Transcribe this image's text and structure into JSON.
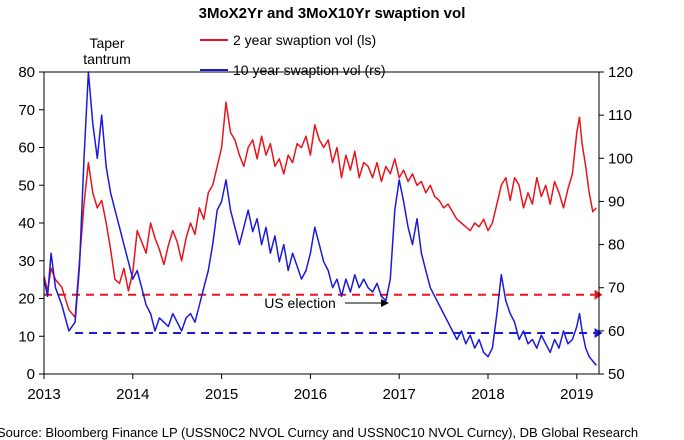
{
  "chart_data": {
    "type": "line",
    "title": "3MoX2Yr and 3MoX10Yr swaption vol",
    "x_axis": {
      "range": [
        2013.0,
        2019.25
      ],
      "ticks": [
        2013,
        2014,
        2015,
        2016,
        2017,
        2018,
        2019
      ]
    },
    "y_left": {
      "range": [
        0,
        80
      ],
      "ticks": [
        0,
        10,
        20,
        30,
        40,
        50,
        60,
        70,
        80
      ]
    },
    "y_right": {
      "range": [
        50,
        120
      ],
      "ticks": [
        50,
        60,
        70,
        80,
        90,
        100,
        110,
        120
      ]
    },
    "series": [
      {
        "name": "2 year swaption vol (ls)",
        "axis": "left",
        "color": "#e8141c",
        "points": [
          [
            2013.0,
            26
          ],
          [
            2013.04,
            22
          ],
          [
            2013.08,
            28
          ],
          [
            2013.13,
            25
          ],
          [
            2013.2,
            23
          ],
          [
            2013.28,
            17
          ],
          [
            2013.35,
            15
          ],
          [
            2013.4,
            30
          ],
          [
            2013.45,
            45
          ],
          [
            2013.5,
            56
          ],
          [
            2013.55,
            48
          ],
          [
            2013.6,
            44
          ],
          [
            2013.65,
            46
          ],
          [
            2013.7,
            40
          ],
          [
            2013.75,
            33
          ],
          [
            2013.8,
            25
          ],
          [
            2013.85,
            24
          ],
          [
            2013.9,
            28
          ],
          [
            2013.95,
            22
          ],
          [
            2014.0,
            27
          ],
          [
            2014.05,
            38
          ],
          [
            2014.1,
            35
          ],
          [
            2014.15,
            32
          ],
          [
            2014.2,
            40
          ],
          [
            2014.25,
            36
          ],
          [
            2014.3,
            33
          ],
          [
            2014.35,
            29
          ],
          [
            2014.4,
            34
          ],
          [
            2014.45,
            38
          ],
          [
            2014.5,
            35
          ],
          [
            2014.55,
            30
          ],
          [
            2014.6,
            36
          ],
          [
            2014.65,
            40
          ],
          [
            2014.7,
            37
          ],
          [
            2014.75,
            44
          ],
          [
            2014.8,
            41
          ],
          [
            2014.85,
            48
          ],
          [
            2014.9,
            50
          ],
          [
            2014.95,
            55
          ],
          [
            2015.0,
            60
          ],
          [
            2015.05,
            72
          ],
          [
            2015.1,
            64
          ],
          [
            2015.15,
            62
          ],
          [
            2015.2,
            58
          ],
          [
            2015.25,
            55
          ],
          [
            2015.3,
            60
          ],
          [
            2015.35,
            62
          ],
          [
            2015.4,
            57
          ],
          [
            2015.45,
            63
          ],
          [
            2015.5,
            58
          ],
          [
            2015.55,
            61
          ],
          [
            2015.6,
            55
          ],
          [
            2015.65,
            57
          ],
          [
            2015.7,
            53
          ],
          [
            2015.75,
            58
          ],
          [
            2015.8,
            56
          ],
          [
            2015.85,
            61
          ],
          [
            2015.9,
            60
          ],
          [
            2015.95,
            63
          ],
          [
            2016.0,
            58
          ],
          [
            2016.05,
            66
          ],
          [
            2016.1,
            62
          ],
          [
            2016.15,
            60
          ],
          [
            2016.2,
            62
          ],
          [
            2016.25,
            56
          ],
          [
            2016.3,
            60
          ],
          [
            2016.35,
            52
          ],
          [
            2016.4,
            58
          ],
          [
            2016.45,
            54
          ],
          [
            2016.5,
            59
          ],
          [
            2016.55,
            52
          ],
          [
            2016.6,
            56
          ],
          [
            2016.65,
            55
          ],
          [
            2016.7,
            52
          ],
          [
            2016.75,
            56
          ],
          [
            2016.8,
            51
          ],
          [
            2016.85,
            55
          ],
          [
            2016.9,
            53
          ],
          [
            2016.95,
            57
          ],
          [
            2017.0,
            52
          ],
          [
            2017.05,
            54
          ],
          [
            2017.1,
            51
          ],
          [
            2017.15,
            53
          ],
          [
            2017.2,
            50
          ],
          [
            2017.25,
            51
          ],
          [
            2017.3,
            48
          ],
          [
            2017.35,
            50
          ],
          [
            2017.4,
            47
          ],
          [
            2017.45,
            46
          ],
          [
            2017.5,
            44
          ],
          [
            2017.55,
            45
          ],
          [
            2017.6,
            43
          ],
          [
            2017.65,
            41
          ],
          [
            2017.7,
            40
          ],
          [
            2017.75,
            39
          ],
          [
            2017.8,
            38
          ],
          [
            2017.85,
            40
          ],
          [
            2017.9,
            39
          ],
          [
            2017.95,
            41
          ],
          [
            2018.0,
            38
          ],
          [
            2018.05,
            40
          ],
          [
            2018.1,
            45
          ],
          [
            2018.15,
            50
          ],
          [
            2018.2,
            52
          ],
          [
            2018.25,
            46
          ],
          [
            2018.3,
            52
          ],
          [
            2018.35,
            50
          ],
          [
            2018.4,
            44
          ],
          [
            2018.45,
            48
          ],
          [
            2018.5,
            45
          ],
          [
            2018.55,
            52
          ],
          [
            2018.6,
            47
          ],
          [
            2018.65,
            50
          ],
          [
            2018.7,
            45
          ],
          [
            2018.75,
            51
          ],
          [
            2018.8,
            48
          ],
          [
            2018.85,
            44
          ],
          [
            2018.9,
            49
          ],
          [
            2018.95,
            53
          ],
          [
            2019.0,
            64
          ],
          [
            2019.03,
            68
          ],
          [
            2019.06,
            61
          ],
          [
            2019.1,
            55
          ],
          [
            2019.14,
            48
          ],
          [
            2019.18,
            43
          ],
          [
            2019.22,
            44
          ]
        ]
      },
      {
        "name": "10 year swaption vol (rs)",
        "axis": "right",
        "color": "#1a1adc",
        "points": [
          [
            2013.0,
            72
          ],
          [
            2013.04,
            68
          ],
          [
            2013.08,
            78
          ],
          [
            2013.13,
            70
          ],
          [
            2013.2,
            66
          ],
          [
            2013.28,
            60
          ],
          [
            2013.35,
            62
          ],
          [
            2013.4,
            75
          ],
          [
            2013.45,
            100
          ],
          [
            2013.5,
            120
          ],
          [
            2013.55,
            108
          ],
          [
            2013.6,
            100
          ],
          [
            2013.65,
            110
          ],
          [
            2013.7,
            98
          ],
          [
            2013.75,
            92
          ],
          [
            2013.8,
            88
          ],
          [
            2013.85,
            84
          ],
          [
            2013.9,
            80
          ],
          [
            2013.95,
            76
          ],
          [
            2014.0,
            72
          ],
          [
            2014.05,
            74
          ],
          [
            2014.1,
            70
          ],
          [
            2014.15,
            66
          ],
          [
            2014.2,
            64
          ],
          [
            2014.25,
            60
          ],
          [
            2014.3,
            63
          ],
          [
            2014.35,
            62
          ],
          [
            2014.4,
            61
          ],
          [
            2014.45,
            64
          ],
          [
            2014.5,
            62
          ],
          [
            2014.55,
            60
          ],
          [
            2014.6,
            63
          ],
          [
            2014.65,
            64
          ],
          [
            2014.7,
            62
          ],
          [
            2014.75,
            66
          ],
          [
            2014.8,
            70
          ],
          [
            2014.85,
            74
          ],
          [
            2014.9,
            80
          ],
          [
            2014.95,
            88
          ],
          [
            2015.0,
            90
          ],
          [
            2015.05,
            95
          ],
          [
            2015.1,
            88
          ],
          [
            2015.15,
            84
          ],
          [
            2015.2,
            80
          ],
          [
            2015.25,
            84
          ],
          [
            2015.3,
            88
          ],
          [
            2015.35,
            83
          ],
          [
            2015.4,
            86
          ],
          [
            2015.45,
            80
          ],
          [
            2015.5,
            84
          ],
          [
            2015.55,
            78
          ],
          [
            2015.6,
            82
          ],
          [
            2015.65,
            76
          ],
          [
            2015.7,
            80
          ],
          [
            2015.75,
            74
          ],
          [
            2015.8,
            78
          ],
          [
            2015.85,
            75
          ],
          [
            2015.9,
            72
          ],
          [
            2015.95,
            74
          ],
          [
            2016.0,
            78
          ],
          [
            2016.05,
            84
          ],
          [
            2016.1,
            80
          ],
          [
            2016.15,
            76
          ],
          [
            2016.2,
            74
          ],
          [
            2016.25,
            70
          ],
          [
            2016.3,
            72
          ],
          [
            2016.35,
            68
          ],
          [
            2016.4,
            72
          ],
          [
            2016.45,
            69
          ],
          [
            2016.5,
            73
          ],
          [
            2016.55,
            70
          ],
          [
            2016.6,
            72
          ],
          [
            2016.65,
            70
          ],
          [
            2016.7,
            69
          ],
          [
            2016.75,
            71
          ],
          [
            2016.8,
            68
          ],
          [
            2016.85,
            67
          ],
          [
            2016.9,
            72
          ],
          [
            2016.95,
            88
          ],
          [
            2017.0,
            95
          ],
          [
            2017.05,
            90
          ],
          [
            2017.1,
            84
          ],
          [
            2017.15,
            80
          ],
          [
            2017.2,
            86
          ],
          [
            2017.25,
            78
          ],
          [
            2017.3,
            74
          ],
          [
            2017.35,
            70
          ],
          [
            2017.4,
            68
          ],
          [
            2017.45,
            66
          ],
          [
            2017.5,
            64
          ],
          [
            2017.55,
            62
          ],
          [
            2017.6,
            60
          ],
          [
            2017.65,
            58
          ],
          [
            2017.7,
            60
          ],
          [
            2017.75,
            57
          ],
          [
            2017.8,
            59
          ],
          [
            2017.85,
            56
          ],
          [
            2017.9,
            58
          ],
          [
            2017.95,
            55
          ],
          [
            2018.0,
            54
          ],
          [
            2018.05,
            56
          ],
          [
            2018.1,
            64
          ],
          [
            2018.15,
            73
          ],
          [
            2018.2,
            67
          ],
          [
            2018.25,
            64
          ],
          [
            2018.3,
            62
          ],
          [
            2018.35,
            58
          ],
          [
            2018.4,
            60
          ],
          [
            2018.45,
            57
          ],
          [
            2018.5,
            58
          ],
          [
            2018.55,
            56
          ],
          [
            2018.6,
            59
          ],
          [
            2018.65,
            57
          ],
          [
            2018.7,
            55
          ],
          [
            2018.75,
            58
          ],
          [
            2018.8,
            56
          ],
          [
            2018.85,
            60
          ],
          [
            2018.9,
            57
          ],
          [
            2018.95,
            58
          ],
          [
            2019.0,
            61
          ],
          [
            2019.03,
            64
          ],
          [
            2019.06,
            60
          ],
          [
            2019.1,
            56
          ],
          [
            2019.14,
            54
          ],
          [
            2019.18,
            53
          ],
          [
            2019.22,
            52
          ]
        ]
      }
    ],
    "reference_lines": [
      {
        "axis": "left",
        "value": 21,
        "x_start": 2013.0,
        "x_end": 2019.2,
        "color": "#e8141c",
        "style": "dashed"
      },
      {
        "axis": "right",
        "value": 59.5,
        "x_start": 2013.35,
        "x_end": 2019.2,
        "color": "#1a1adc",
        "style": "dashed"
      }
    ],
    "annotations": [
      {
        "text_lines": [
          "Taper",
          "tantrum"
        ],
        "x": 2013.5
      },
      {
        "text": "US election",
        "x": 2016.9,
        "y_left": 18
      }
    ],
    "legend": {
      "position": "top-center"
    },
    "source": "Source: Bloomberg Finance LP (USSN0C2 NVOL Curncy and USSN0C10 NVOL Curncy), DB Global Research"
  }
}
